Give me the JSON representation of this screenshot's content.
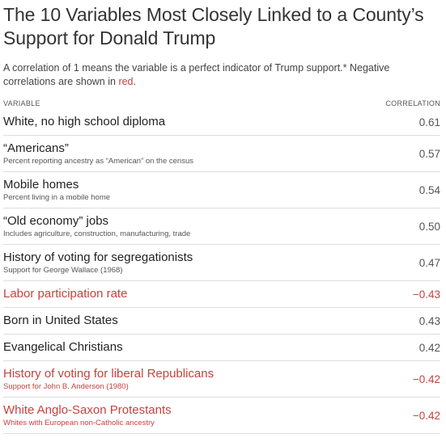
{
  "title": "The 10 Variables Most Closely Linked to a County’s Support for Donald Trump",
  "description": {
    "text_before": "A correlation of 1 means the variable is a perfect indicator of Trump support.* Negative correlations are shown in ",
    "red_word": "red",
    "text_after": "."
  },
  "table": {
    "header_variable": "VARIABLE",
    "header_correlation": "CORRELATION",
    "rows": [
      {
        "name": "White, no high school diploma",
        "sub": "",
        "value": "0.61",
        "negative": false
      },
      {
        "name": "“Americans”",
        "sub": "Percent reporting ancestry as “American” on the census",
        "value": "0.57",
        "negative": false
      },
      {
        "name": "Mobile homes",
        "sub": "Percent living in a mobile home",
        "value": "0.54",
        "negative": false
      },
      {
        "name": "“Old economy” jobs",
        "sub": "Includes agriculture, construction, manufacturing, trade",
        "value": "0.50",
        "negative": false
      },
      {
        "name": "History of voting for segregationists",
        "sub": "Support for George Wallace (1968)",
        "value": "0.47",
        "negative": false
      },
      {
        "name": "Labor participation rate",
        "sub": "",
        "value": "−0.43",
        "negative": true
      },
      {
        "name": "Born in United States",
        "sub": "",
        "value": "0.43",
        "negative": false
      },
      {
        "name": "Evangelical Christians",
        "sub": "",
        "value": "0.42",
        "negative": false
      },
      {
        "name": "History of voting for liberal Republicans",
        "sub": "Support for John B. Anderson (1980)",
        "value": "−0.42",
        "negative": true
      },
      {
        "name": "White Anglo-Saxon Protestants",
        "sub": "Whites with European non-Catholic ancestry",
        "value": "−0.42",
        "negative": true
      }
    ]
  },
  "colors": {
    "negative": "#c8413f",
    "text": "#333333",
    "divider": "#dddddd"
  }
}
